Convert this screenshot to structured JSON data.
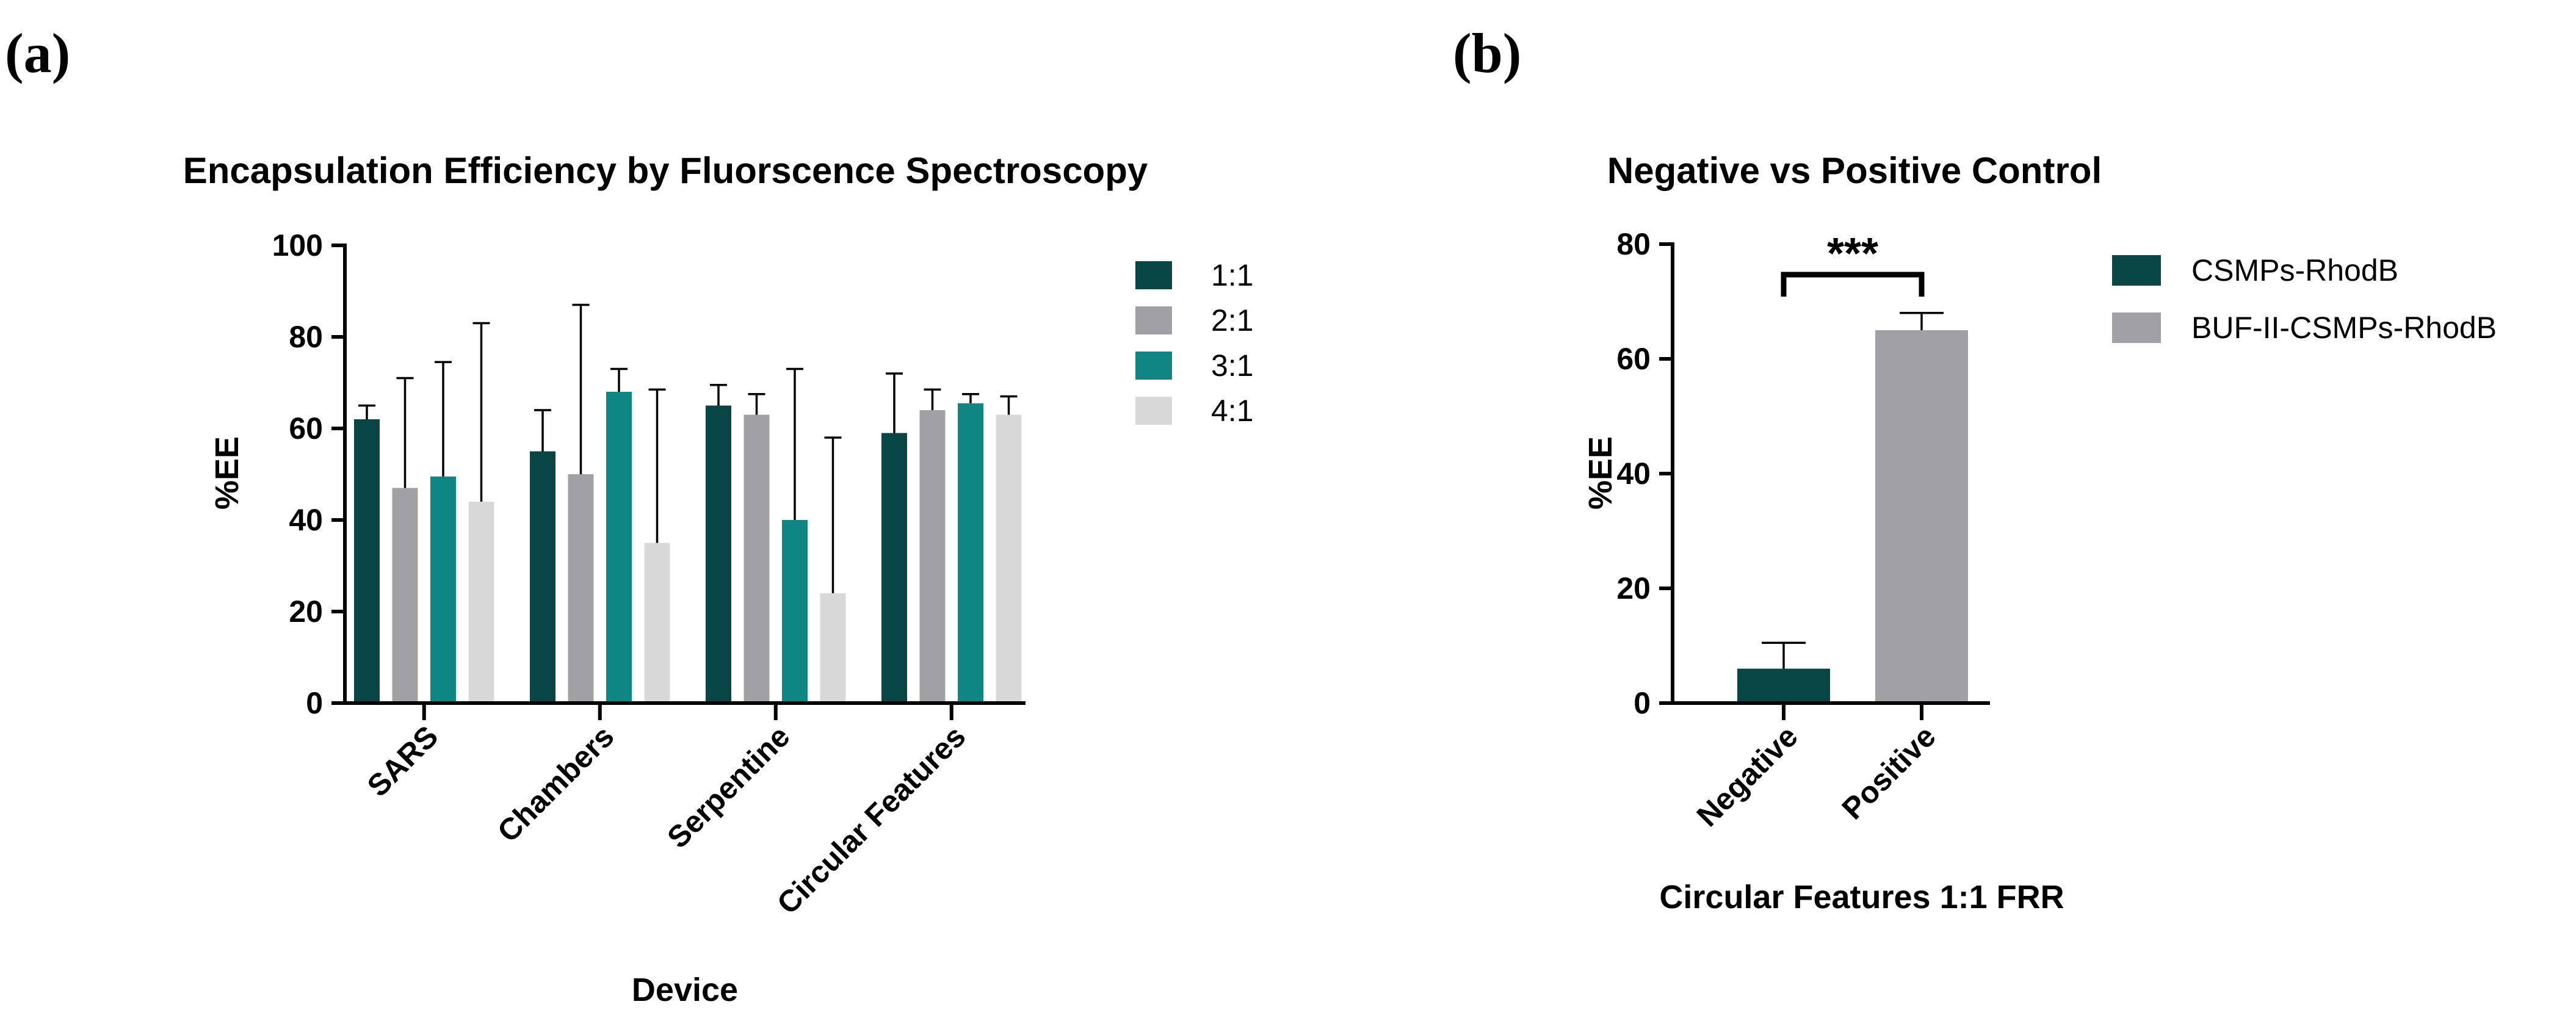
{
  "colors": {
    "dark_teal": "#084646",
    "gray": "#a1a1a5",
    "teal": "#0f8684",
    "light_gray": "#d8d8d8"
  },
  "panel_a": {
    "label": "(a)"
  },
  "panel_b": {
    "label": "(b)"
  },
  "chart_data": [
    {
      "type": "bar",
      "title": "Encapsulation Efficiency by Fluorscence Spectroscopy",
      "xlabel": "Device",
      "ylabel": "%EE",
      "ylim": [
        0,
        100
      ],
      "yticks": [
        "0",
        "20",
        "40",
        "60",
        "80",
        "100"
      ],
      "categories": [
        "SARS",
        "Chambers",
        "Serpentine",
        "Circular Features"
      ],
      "series": [
        {
          "name": "1:1",
          "color": "#084646",
          "values": [
            62,
            55,
            65,
            59
          ],
          "errors": [
            3,
            9,
            4.5,
            13
          ]
        },
        {
          "name": "2:1",
          "color": "#a1a1a5",
          "values": [
            47,
            50,
            63,
            64
          ],
          "errors": [
            24,
            37,
            4.5,
            4.5
          ]
        },
        {
          "name": "3:1",
          "color": "#0f8684",
          "values": [
            49.5,
            68,
            40,
            65.5
          ],
          "errors": [
            25,
            5,
            33,
            2
          ]
        },
        {
          "name": "4:1",
          "color": "#d8d8d8",
          "values": [
            44,
            35,
            24,
            63
          ],
          "errors": [
            39,
            33.5,
            34,
            4
          ]
        }
      ],
      "legend": [
        "1:1",
        "2:1",
        "3:1",
        "4:1"
      ],
      "legend_position": "right"
    },
    {
      "type": "bar",
      "title": "Negative vs Positive Control",
      "xlabel": "Circular Features 1:1 FRR",
      "ylabel": "%EE",
      "ylim": [
        0,
        80
      ],
      "yticks": [
        "0",
        "20",
        "40",
        "60",
        "80"
      ],
      "categories": [
        "Negative",
        "Positive"
      ],
      "series": [
        {
          "name": "CSMPs-RhodB",
          "color": "#084646",
          "values": [
            6,
            null
          ],
          "errors": [
            4.5,
            null
          ]
        },
        {
          "name": "BUF-II-CSMPs-RhodB",
          "color": "#a1a1a5",
          "values": [
            null,
            65
          ],
          "errors": [
            null,
            3
          ]
        }
      ],
      "legend": [
        "CSMPs-RhodB",
        "BUF-II-CSMPs-RhodB"
      ],
      "legend_position": "right",
      "annotation": "***"
    }
  ]
}
